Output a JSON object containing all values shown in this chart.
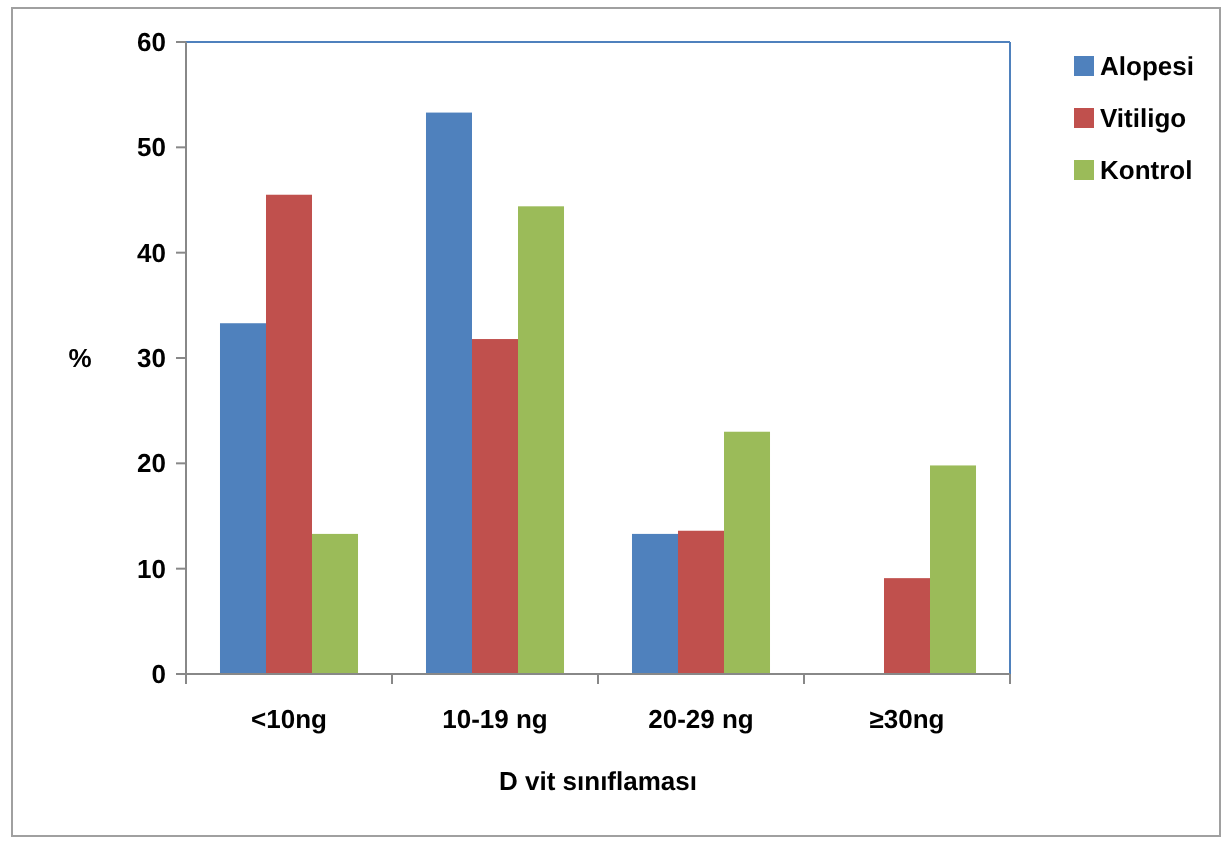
{
  "chart_data": {
    "type": "bar",
    "xlabel": "D vit sınıflaması",
    "ylabel": "%",
    "categories": [
      "<10ng",
      "10-19 ng",
      "20-29 ng",
      "≥30ng"
    ],
    "series": [
      {
        "name": "Alopesi",
        "color": "#4f81bd",
        "values": [
          33.3,
          53.3,
          13.3,
          0
        ]
      },
      {
        "name": "Vitiligo",
        "color": "#c0504d",
        "values": [
          45.5,
          31.8,
          13.6,
          9.1
        ]
      },
      {
        "name": "Kontrol",
        "color": "#9bbb59",
        "values": [
          13.3,
          44.4,
          23,
          19.8
        ]
      }
    ],
    "ylim": [
      0,
      60
    ],
    "yticks": [
      0,
      10,
      20,
      30,
      40,
      50,
      60
    ],
    "grid": false,
    "legend": "top right"
  }
}
